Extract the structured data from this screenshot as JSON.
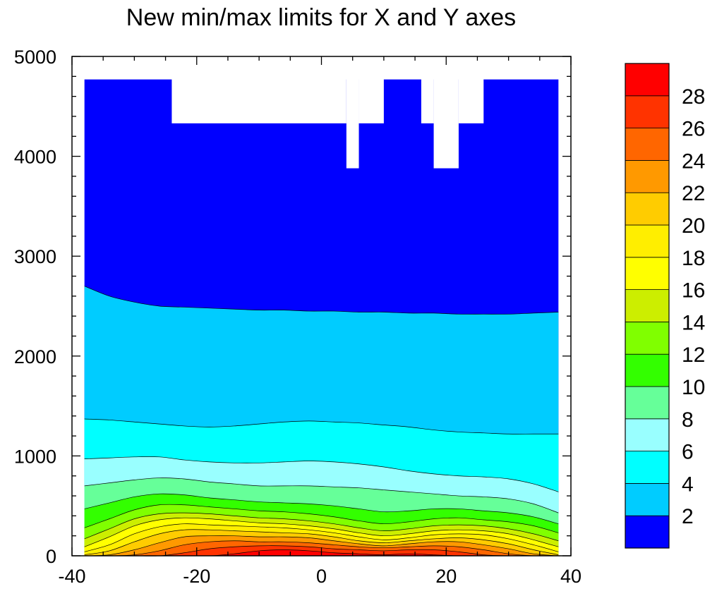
{
  "chart_data": {
    "type": "contour",
    "title": "New min/max limits for X and Y axes",
    "xlabel": "",
    "ylabel": "",
    "xlim": [
      -40,
      40
    ],
    "ylim": [
      0,
      5000
    ],
    "x_ticks": [
      -40,
      -20,
      0,
      20,
      40
    ],
    "y_ticks": [
      0,
      1000,
      2000,
      3000,
      4000,
      5000
    ],
    "x_tick_labels": [
      "-40",
      "-20",
      "0",
      "20",
      "40"
    ],
    "y_tick_labels": [
      "0",
      "1000",
      "2000",
      "3000",
      "4000",
      "5000"
    ],
    "data_x_range": [
      -38,
      38
    ],
    "contour_levels": [
      2,
      4,
      6,
      8,
      10,
      12,
      14,
      16,
      18,
      20,
      22,
      24,
      26,
      28
    ],
    "colorbar_labels": [
      "28",
      "26",
      "24",
      "22",
      "20",
      "18",
      "16",
      "14",
      "12",
      "10",
      "8",
      "6",
      "4",
      "2"
    ],
    "fill_colors": [
      "#0000ff",
      "#00ccff",
      "#00ffff",
      "#99ffff",
      "#66ff99",
      "#33ff00",
      "#80ff00",
      "#ccee00",
      "#ffff00",
      "#ffee00",
      "#ffcc00",
      "#ff9900",
      "#ff6600",
      "#ff3300",
      "#ff0000"
    ],
    "x": [
      -38,
      -34,
      -30,
      -26,
      -22,
      -18,
      -14,
      -10,
      -6,
      -2,
      2,
      6,
      10,
      14,
      18,
      22,
      26,
      30,
      34,
      38
    ],
    "contours": [
      {
        "level": 2,
        "y": [
          2700,
          2600,
          2540,
          2500,
          2490,
          2480,
          2470,
          2460,
          2460,
          2450,
          2450,
          2440,
          2440,
          2430,
          2430,
          2420,
          2420,
          2420,
          2430,
          2440
        ]
      },
      {
        "level": 4,
        "y": [
          1370,
          1360,
          1340,
          1320,
          1300,
          1290,
          1300,
          1320,
          1340,
          1350,
          1340,
          1330,
          1310,
          1290,
          1260,
          1240,
          1230,
          1220,
          1220,
          1220
        ]
      },
      {
        "level": 6,
        "y": [
          970,
          980,
          990,
          990,
          960,
          940,
          930,
          930,
          940,
          950,
          940,
          920,
          890,
          850,
          820,
          800,
          790,
          770,
          720,
          640
        ]
      },
      {
        "level": 8,
        "y": [
          700,
          730,
          760,
          780,
          770,
          740,
          720,
          700,
          700,
          700,
          690,
          680,
          660,
          640,
          620,
          600,
          590,
          570,
          520,
          430
        ]
      },
      {
        "level": 10,
        "y": [
          470,
          530,
          590,
          620,
          610,
          580,
          560,
          540,
          530,
          520,
          500,
          470,
          440,
          450,
          470,
          470,
          450,
          430,
          390,
          320
        ]
      },
      {
        "level": 12,
        "y": [
          280,
          370,
          460,
          510,
          510,
          490,
          470,
          450,
          440,
          420,
          390,
          350,
          320,
          340,
          370,
          380,
          360,
          340,
          300,
          230
        ]
      },
      {
        "level": 14,
        "y": [
          170,
          270,
          370,
          420,
          430,
          420,
          400,
          380,
          370,
          350,
          320,
          280,
          250,
          270,
          300,
          310,
          300,
          270,
          220,
          150
        ]
      },
      {
        "level": 16,
        "y": [
          90,
          190,
          300,
          360,
          380,
          370,
          350,
          330,
          320,
          300,
          270,
          230,
          200,
          220,
          250,
          260,
          250,
          220,
          160,
          90
        ]
      },
      {
        "level": 18,
        "y": [
          40,
          110,
          220,
          290,
          320,
          310,
          300,
          290,
          280,
          260,
          230,
          190,
          160,
          180,
          210,
          220,
          210,
          170,
          110,
          40
        ]
      },
      {
        "level": 20,
        "y": [
          10,
          50,
          140,
          220,
          260,
          260,
          250,
          240,
          230,
          220,
          190,
          150,
          130,
          150,
          170,
          180,
          160,
          120,
          60,
          10
        ]
      },
      {
        "level": 22,
        "y": [
          0,
          10,
          60,
          130,
          190,
          200,
          200,
          190,
          190,
          180,
          150,
          120,
          100,
          120,
          140,
          140,
          110,
          70,
          20,
          0
        ]
      },
      {
        "level": 24,
        "y": [
          0,
          0,
          10,
          50,
          110,
          140,
          150,
          140,
          140,
          130,
          110,
          90,
          80,
          90,
          100,
          90,
          60,
          20,
          0,
          0
        ]
      },
      {
        "level": 26,
        "y": [
          0,
          0,
          0,
          0,
          30,
          70,
          90,
          100,
          100,
          90,
          70,
          60,
          50,
          60,
          60,
          40,
          10,
          0,
          0,
          0
        ]
      },
      {
        "level": 28,
        "y": [
          0,
          0,
          0,
          0,
          0,
          0,
          20,
          50,
          60,
          50,
          30,
          20,
          10,
          20,
          10,
          0,
          0,
          0,
          0,
          0
        ]
      }
    ],
    "missing_data_top": [
      {
        "x_range": [
          -38,
          -24
        ],
        "y_top": 4770
      },
      {
        "x_range": [
          -24,
          4
        ],
        "y_top": 4330
      },
      {
        "x_range": [
          4,
          6
        ],
        "y_top": 3880
      },
      {
        "x_range": [
          6,
          10
        ],
        "y_top": 4330
      },
      {
        "x_range": [
          10,
          16
        ],
        "y_top": 4770
      },
      {
        "x_range": [
          16,
          18
        ],
        "y_top": 4330
      },
      {
        "x_range": [
          18,
          22
        ],
        "y_top": 3880
      },
      {
        "x_range": [
          22,
          26
        ],
        "y_top": 4330
      },
      {
        "x_range": [
          26,
          38
        ],
        "y_top": 4770
      }
    ],
    "grid": false,
    "legend": "colorbar-right"
  }
}
